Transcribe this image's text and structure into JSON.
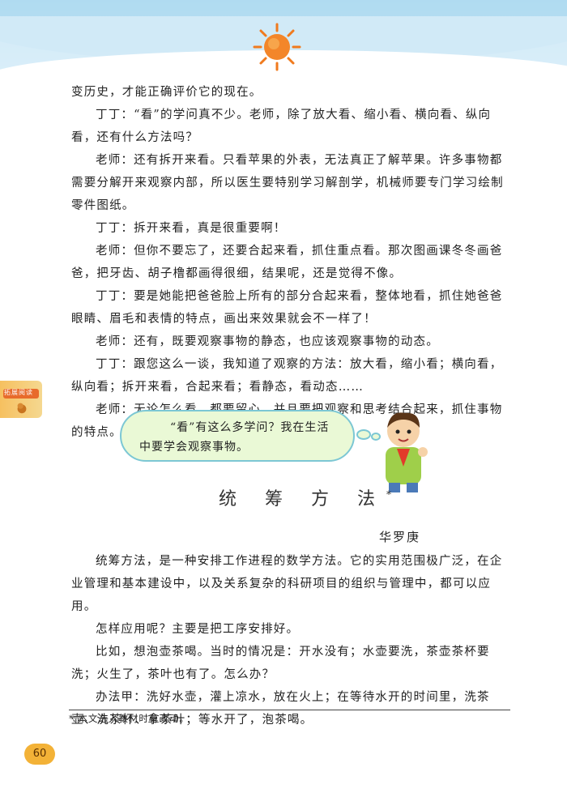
{
  "paragraphs_top": [
    "变历史，才能正确评价它的现在。",
    "丁丁：“看”的学问真不少。老师，除了放大看、缩小看、横向看、纵向看，还有什么方法吗？",
    "老师：还有拆开来看。只看苹果的外表，无法真正了解苹果。许多事物都需要分解开来观察内部，所以医生要特别学习解剖学，机械师要专门学习绘制零件图纸。",
    "丁丁：拆开来看，真是很重要啊！",
    "老师：但你不要忘了，还要合起来看，抓住重点看。那次图画课冬冬画爸爸，把牙齿、胡子橹都画得很细，结果呢，还是觉得不像。",
    "丁丁：要是她能把爸爸脸上所有的部分合起来看，整体地看，抓住她爸爸眼睛、眉毛和表情的特点，画出来效果就会不一样了！",
    "老师：还有，既要观察事物的静态，也应该观察事物的动态。",
    "丁丁：跟您这么一谈，我知道了观察的方法：放大看，缩小看；横向看，纵向看；拆开来看，合起来看；看静态，看动态……",
    "老师：无论怎么看，都要留心，并且要把观察和思考结合起来，抓住事物的特点。"
  ],
  "bubble": {
    "line1": "“看”有这么多学问？我在生活",
    "line2": "中要学会观察事物。"
  },
  "title": "统 筹 方 法",
  "title_mark": "*",
  "author": "华罗庚",
  "paragraphs_bottom": [
    "统筹方法，是一种安排工作进程的数学方法。它的实用范围极广泛，在企业管理和基本建设中，以及关系复杂的科研项目的组织与管理中，都可以应用。",
    "怎样应用呢？主要是把工序安排好。",
    "比如，想泡壶茶喝。当时的情况是：开水没有；水壶要洗，茶壶茶杯要洗；火生了，茶叶也有了。怎么办？",
    "办法甲：洗好水壶，灌上凉水，放在火上；在等待水开的时间里，洗茶壶、洗茶杯、拿茶叶；等水开了，泡茶喝。"
  ],
  "footnote": "* 本文选入教材时有改动。",
  "page_number": "60",
  "side_tab_label": "拓展阅读",
  "colors": {
    "sun": "#f07a1e",
    "bubble_fill": "#eaf9d6",
    "bubble_border": "#7cc7d4",
    "page_badge": "#f3b237"
  }
}
